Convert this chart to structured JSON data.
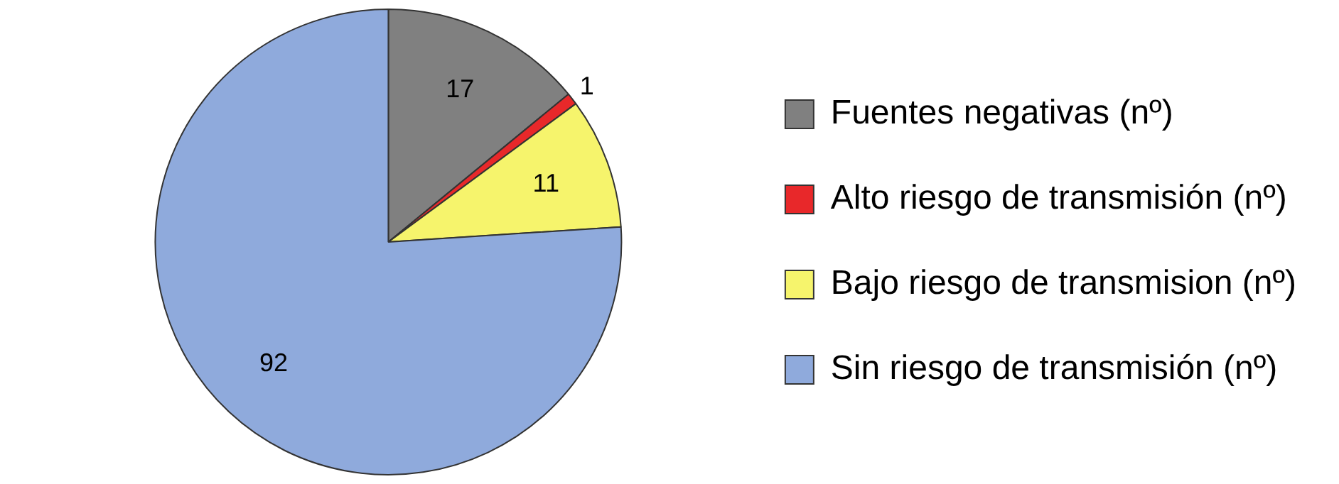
{
  "chart_data": {
    "type": "pie",
    "categories": [
      "Fuentes negativas (nº)",
      "Alto riesgo de transmisión (nº)",
      "Bajo riesgo de transmision (nº)",
      "Sin riesgo de transmisión (nº)"
    ],
    "values": [
      17,
      1,
      11,
      92
    ],
    "colors": [
      "#808080",
      "#e8282a",
      "#f6f46c",
      "#8faadc"
    ],
    "data_labels": true,
    "legend": "right"
  }
}
